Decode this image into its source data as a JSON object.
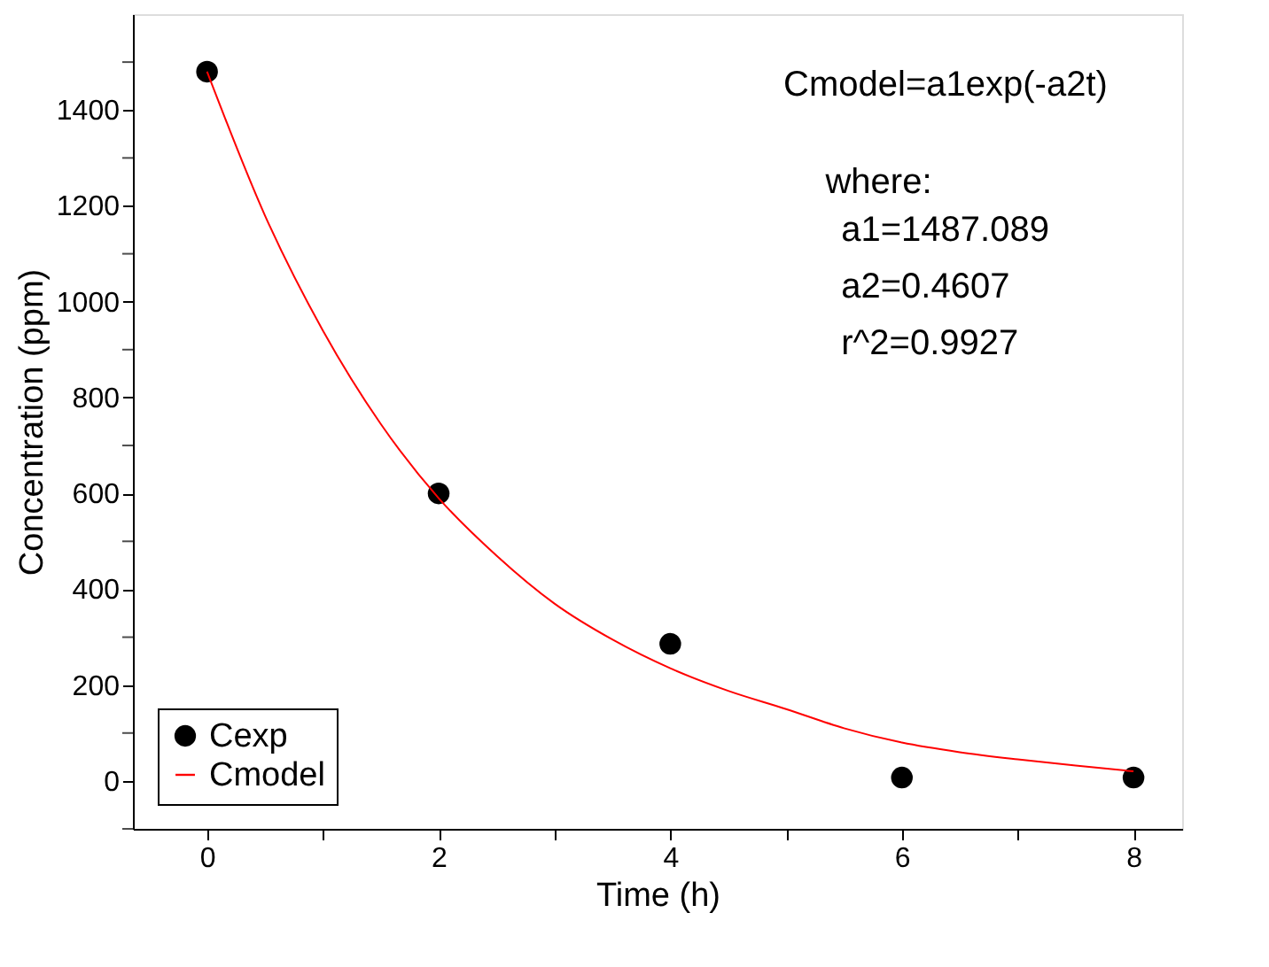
{
  "chart_data": {
    "type": "scatter",
    "xlabel": "Time (h)",
    "ylabel": "Concentration (ppm)",
    "xlim": [
      -0.64,
      8.42
    ],
    "ylim": [
      -100,
      1600
    ],
    "xticks": [
      0,
      {
        "value": 1,
        "label": null
      },
      2,
      {
        "value": 3,
        "label": null
      },
      4,
      {
        "value": 5,
        "label": null
      },
      6,
      {
        "value": 7,
        "label": null
      },
      8
    ],
    "yticks": [
      {
        "value": -100,
        "label": null
      },
      0,
      {
        "value": 100,
        "label": null
      },
      200,
      {
        "value": 300,
        "label": null
      },
      400,
      {
        "value": 500,
        "label": null
      },
      600,
      {
        "value": 700,
        "label": null
      },
      800,
      {
        "value": 900,
        "label": null
      },
      1000,
      {
        "value": 1100,
        "label": null
      },
      1200,
      {
        "value": 1300,
        "label": null
      },
      1400,
      {
        "value": 1500,
        "label": null
      }
    ],
    "series": [
      {
        "name": "Cexp",
        "type": "scatter",
        "color": "#000000",
        "marker": "circle",
        "x": [
          0,
          2,
          4,
          6,
          8
        ],
        "values": [
          1480,
          600,
          286,
          7,
          7
        ]
      },
      {
        "name": "Cmodel",
        "type": "line",
        "color": "#ff0000",
        "line_style": "solid",
        "marker": "none",
        "x": [
          0,
          0.5,
          1,
          1.5,
          2,
          2.5,
          3,
          3.5,
          4,
          4.5,
          5,
          5.5,
          6,
          6.5,
          7,
          7.5,
          8
        ],
        "values": [
          1480,
          1180,
          940,
          745,
          590,
          470,
          370,
          295,
          235,
          188,
          150,
          110,
          80,
          60,
          45,
          32,
          20
        ]
      }
    ],
    "annotations": [
      "Cmodel=a1exp(-a2t)",
      "where:",
      "a1=1487.089",
      "a2=0.4607",
      "r^2=0.9927"
    ],
    "legend": "bottom left",
    "grid": false
  }
}
